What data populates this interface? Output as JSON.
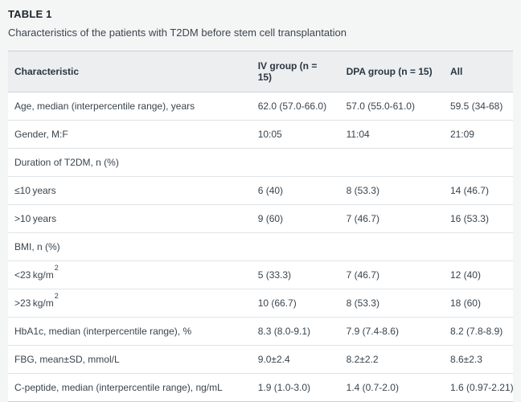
{
  "table": {
    "label": "TABLE 1",
    "caption": "Characteristics of the patients with T2DM before stem cell transplantation",
    "columns": [
      "Characteristic",
      "IV group (n = 15)",
      "DPA group (n = 15)",
      "All"
    ],
    "rows": [
      {
        "cells": [
          "Age, median (interpercentile range), years",
          "62.0 (57.0-66.0)",
          "57.0 (55.0-61.0)",
          "59.5 (34-68)"
        ]
      },
      {
        "cells": [
          "Gender, M:F",
          "10:05",
          "11:04",
          "21:09"
        ]
      },
      {
        "cells": [
          "Duration of T2DM, n (%)",
          "",
          "",
          ""
        ]
      },
      {
        "cells": [
          "≤10 years",
          "6 (40)",
          "8 (53.3)",
          "14 (46.7)"
        ]
      },
      {
        "cells": [
          ">10 years",
          "9 (60)",
          "7 (46.7)",
          "16 (53.3)"
        ]
      },
      {
        "cells": [
          "BMI, n (%)",
          "",
          "",
          ""
        ]
      },
      {
        "cells": [
          {
            "text": "<23 kg/m",
            "sup": "2"
          },
          "5 (33.3)",
          "7 (46.7)",
          "12 (40)"
        ]
      },
      {
        "cells": [
          {
            "text": ">23 kg/m",
            "sup": "2"
          },
          "10 (66.7)",
          "8 (53.3)",
          "18 (60)"
        ]
      },
      {
        "cells": [
          "HbA1c, median (interpercentile range), %",
          "8.3 (8.0-9.1)",
          "7.9 (7.4-8.6)",
          "8.2 (7.8-8.9)"
        ]
      },
      {
        "cells": [
          "FBG, mean±SD, mmol/L",
          "9.0±2.4",
          "8.2±2.2",
          "8.6±2.3"
        ]
      },
      {
        "cells": [
          "C-peptide, median (interpercentile range), ng/mL",
          "1.9 (1.0-3.0)",
          "1.4 (0.7-2.0)",
          "1.6 (0.97-2.21)"
        ]
      }
    ],
    "colors": {
      "page_background": "#f4f5f5",
      "table_background": "#ffffff",
      "header_background": "#eceef0",
      "outer_border": "#c9cfd4",
      "row_divider": "#e0e4e7",
      "text": "#39444e"
    }
  },
  "chart_data": {
    "type": "table",
    "title": "TABLE 1. Characteristics of the patients with T2DM before stem cell transplantation",
    "columns": [
      "Characteristic",
      "IV group (n = 15)",
      "DPA group (n = 15)",
      "All"
    ],
    "rows": [
      [
        "Age, median (interpercentile range), years",
        "62.0 (57.0-66.0)",
        "57.0 (55.0-61.0)",
        "59.5 (34-68)"
      ],
      [
        "Gender, M:F",
        "10:05",
        "11:04",
        "21:09"
      ],
      [
        "Duration of T2DM, n (%)",
        "",
        "",
        ""
      ],
      [
        "≤10 years",
        "6 (40)",
        "8 (53.3)",
        "14 (46.7)"
      ],
      [
        ">10 years",
        "9 (60)",
        "7 (46.7)",
        "16 (53.3)"
      ],
      [
        "BMI, n (%)",
        "",
        "",
        ""
      ],
      [
        "<23 kg/m²",
        "5 (33.3)",
        "7 (46.7)",
        "12 (40)"
      ],
      [
        ">23 kg/m²",
        "10 (66.7)",
        "8 (53.3)",
        "18 (60)"
      ],
      [
        "HbA1c, median (interpercentile range), %",
        "8.3 (8.0-9.1)",
        "7.9 (7.4-8.6)",
        "8.2 (7.8-8.9)"
      ],
      [
        "FBG, mean±SD, mmol/L",
        "9.0±2.4",
        "8.2±2.2",
        "8.6±2.3"
      ],
      [
        "C-peptide, median (interpercentile range), ng/mL",
        "1.9 (1.0-3.0)",
        "1.4 (0.7-2.0)",
        "1.6 (0.97-2.21)"
      ]
    ]
  }
}
